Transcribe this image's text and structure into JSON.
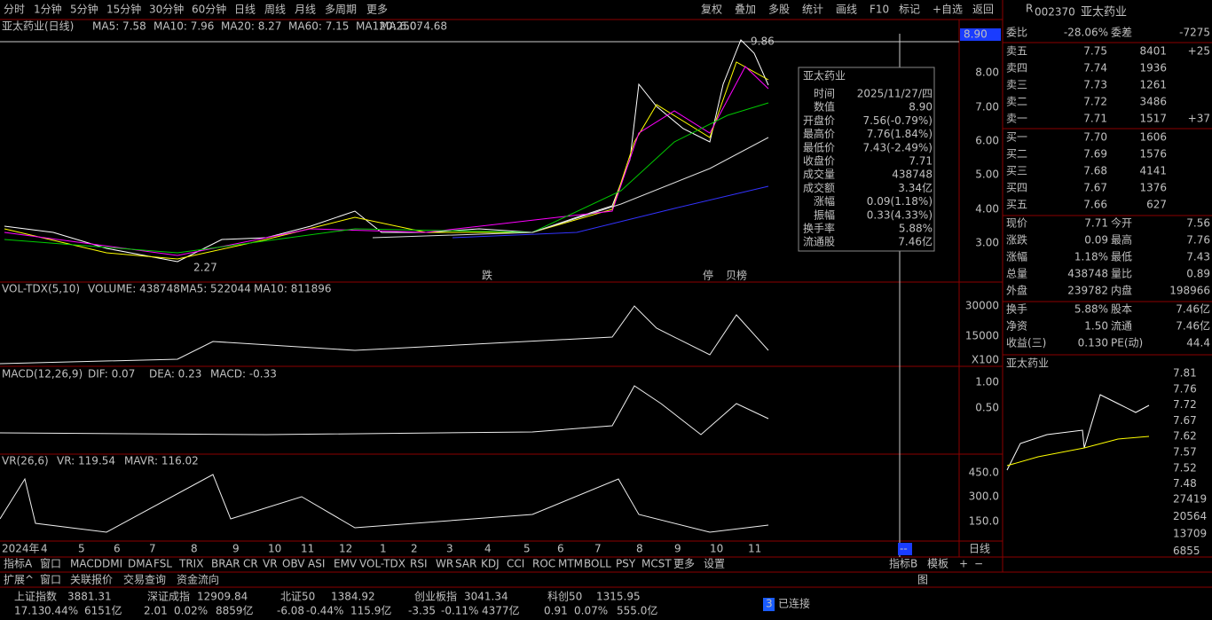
{
  "toolbar": {
    "periods": [
      "分时",
      "1分钟",
      "5分钟",
      "15分钟",
      "30分钟",
      "60分钟",
      "日线",
      "周线",
      "月线",
      "多周期",
      "更多"
    ],
    "buttons": [
      "复权",
      "叠加",
      "多股",
      "统计",
      "画线",
      "F10",
      "标记",
      "+自选",
      "返回"
    ]
  },
  "main": {
    "title": "亚太药业(日线)",
    "indicators": [
      "MA5: 7.58",
      "MA10: 7.96",
      "MA20: 8.27",
      "MA60: 7.15",
      "MA120: 6.07",
      "MA250: 4.68"
    ],
    "high": "9.86",
    "low": "2.27",
    "marks": [
      "跌",
      "停",
      "贝榜"
    ],
    "cursor": "8.90",
    "axis": [
      "8.00",
      "7.00",
      "6.00",
      "5.00",
      "4.00",
      "3.00"
    ]
  },
  "tooltip": {
    "title": "亚太药业",
    "rows": [
      [
        "时间",
        "2025/11/27/四"
      ],
      [
        "数值",
        "8.90"
      ],
      [
        "开盘价",
        "7.56(-0.79%)"
      ],
      [
        "最高价",
        "7.76(1.84%)"
      ],
      [
        "最低价",
        "7.43(-2.49%)"
      ],
      [
        "收盘价",
        "7.71"
      ],
      [
        "成交量",
        "438748"
      ],
      [
        "成交额",
        "3.34亿"
      ],
      [
        "涨幅",
        "0.09(1.18%)"
      ],
      [
        "振幅",
        "0.33(4.33%)"
      ],
      [
        "换手率",
        "5.88%"
      ],
      [
        "流通股",
        "7.46亿"
      ]
    ]
  },
  "volume": {
    "header": [
      "VOL-TDX(5,10)",
      "VOLUME: 438748",
      "MA5: 522044",
      "MA10: 811896"
    ],
    "axis": [
      "30000",
      "15000",
      "X100"
    ]
  },
  "macd": {
    "header": [
      "MACD(12,26,9)",
      "DIF: 0.07",
      "DEA: 0.23",
      "MACD: -0.33"
    ],
    "axis": [
      "1.00",
      "0.50"
    ]
  },
  "vr": {
    "header": [
      "VR(26,6)",
      "VR: 119.54",
      "MAVR: 116.02"
    ],
    "axis": [
      "450.0",
      "300.0",
      "150.0"
    ]
  },
  "dates": [
    "2024年",
    "4",
    "5",
    "6",
    "7",
    "8",
    "9",
    "10",
    "11",
    "12",
    "1",
    "2",
    "3",
    "4",
    "5",
    "6",
    "7",
    "8",
    "9",
    "10",
    "11"
  ],
  "period_label": "日线",
  "cursor_date": "--",
  "indicator_tabs": [
    "指标A",
    "窗口",
    "MACD",
    "DMI",
    "DMA",
    "FSL",
    "TRIX",
    "BRAR",
    "CR",
    "VR",
    "OBV",
    "ASI",
    "EMV",
    "VOL-TDX",
    "RSI",
    "WR",
    "SAR",
    "KDJ",
    "CCI",
    "ROC",
    "MTM",
    "BOLL",
    "PSY",
    "MCST",
    "更多",
    "设置"
  ],
  "indicator_tabs_right": [
    "指标B",
    "模板",
    "+",
    "−"
  ],
  "ext_tabs": [
    "扩展^",
    "窗口",
    "关联报价",
    "交易查询",
    "资金流向"
  ],
  "ext_right": "图",
  "quote": {
    "flag": "R",
    "code": "002370",
    "name": "亚太药业",
    "weibi": [
      "委比",
      "-28.06%",
      "委差",
      "-7275"
    ],
    "sells": [
      [
        "卖五",
        "7.75",
        "8401",
        "+25"
      ],
      [
        "卖四",
        "7.74",
        "1936",
        ""
      ],
      [
        "卖三",
        "7.73",
        "1261",
        ""
      ],
      [
        "卖二",
        "7.72",
        "3486",
        ""
      ],
      [
        "卖一",
        "7.71",
        "1517",
        "+37"
      ]
    ],
    "buys": [
      [
        "买一",
        "7.70",
        "1606"
      ],
      [
        "买二",
        "7.69",
        "1576"
      ],
      [
        "买三",
        "7.68",
        "4141"
      ],
      [
        "买四",
        "7.67",
        "1376"
      ],
      [
        "买五",
        "7.66",
        "627"
      ]
    ],
    "stats": [
      [
        "现价",
        "7.71",
        "今开",
        "7.56"
      ],
      [
        "涨跌",
        "0.09",
        "最高",
        "7.76"
      ],
      [
        "涨幅",
        "1.18%",
        "最低",
        "7.43"
      ],
      [
        "总量",
        "438748",
        "量比",
        "0.89"
      ],
      [
        "外盘",
        "239782",
        "内盘",
        "198966"
      ],
      [
        "换手",
        "5.88%",
        "股本",
        "7.46亿"
      ],
      [
        "净资",
        "1.50",
        "流通",
        "7.46亿"
      ],
      [
        "收益(三)",
        "0.130",
        "PE(动)",
        "44.4"
      ]
    ]
  },
  "intraday": {
    "title": "亚太药业",
    "price_axis": [
      "7.81",
      "7.76",
      "7.72",
      "7.67",
      "7.62",
      "7.57",
      "7.52",
      "7.48"
    ],
    "volume_axis": [
      "27419",
      "20564",
      "13709",
      "6855"
    ]
  },
  "indices": [
    [
      "上证指数",
      "3881.31",
      "17.13",
      "0.44%",
      "6151亿"
    ],
    [
      "深证成指",
      "12909.84",
      "2.01",
      "0.02%",
      "8859亿"
    ],
    [
      "北证50",
      "1384.92",
      "-6.08",
      "-0.44%",
      "115.9亿"
    ],
    [
      "创业板指",
      "3041.34",
      "-3.35",
      "-0.11%",
      "4377亿"
    ],
    [
      "科创50",
      "1315.95",
      "0.91",
      "0.07%",
      "555.0亿"
    ]
  ],
  "status": {
    "count": "3",
    "text": "已连接"
  }
}
